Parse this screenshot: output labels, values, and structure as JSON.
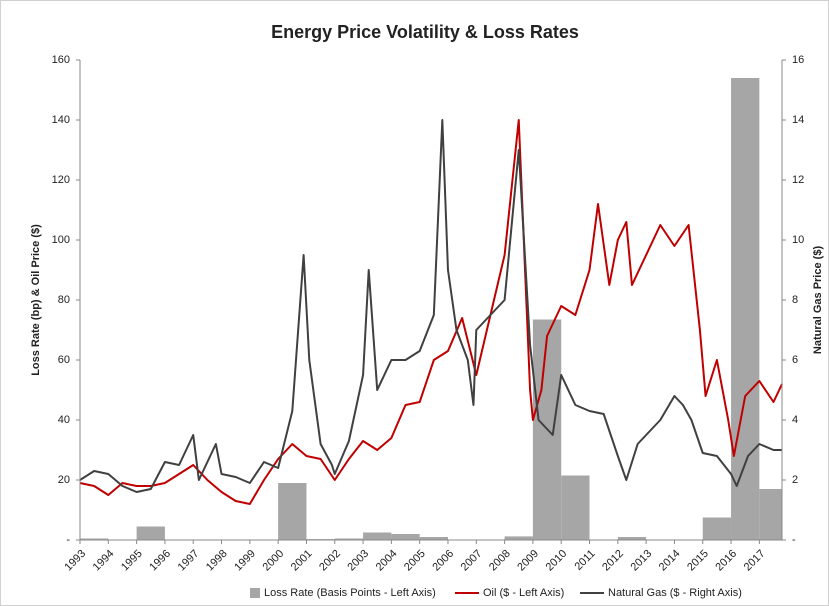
{
  "chart_data": {
    "type": "combo",
    "title": "Energy Price Volatility & Loss Rates",
    "ylabel": "Loss Rate (bp) & Oil Price ($)",
    "y2label": "Natural Gas Price ($)",
    "xlim": [
      1993,
      2017.8
    ],
    "xticks": [
      1993,
      1994,
      1995,
      1996,
      1997,
      1998,
      1999,
      2000,
      2001,
      2002,
      2003,
      2004,
      2005,
      2006,
      2007,
      2008,
      2009,
      2010,
      2011,
      2012,
      2013,
      2014,
      2015,
      2016,
      2017
    ],
    "ylim": [
      0,
      160
    ],
    "yticks": [
      {
        "value": 0,
        "label": "-"
      },
      20,
      40,
      60,
      80,
      100,
      120,
      140,
      160
    ],
    "y2lim": [
      0,
      16
    ],
    "y2ticks": [
      {
        "value": 0,
        "label": "-"
      },
      2,
      4,
      6,
      8,
      10,
      12,
      14,
      16
    ],
    "legend": "bottom",
    "series": [
      {
        "name": "Loss Rate (Basis Points - Left Axis)",
        "type": "bar",
        "color": "#a6a6a6",
        "x": [
          1993,
          1994,
          1995,
          1996,
          1997,
          1998,
          1999,
          2000,
          2001,
          2002,
          2003,
          2004,
          2005,
          2006,
          2007,
          2008,
          2009,
          2010,
          2011,
          2012,
          2013,
          2014,
          2015,
          2016,
          2017
        ],
        "values": [
          0.5,
          0,
          4.5,
          0,
          0,
          0,
          0,
          19,
          0.3,
          0.5,
          2.5,
          2,
          1,
          0,
          0,
          1.2,
          73.5,
          21.5,
          0,
          1,
          0,
          0,
          7.5,
          154,
          17
        ]
      },
      {
        "name": "Oil ($ - Left Axis)",
        "type": "line",
        "color": "#c00000",
        "x": [
          1993,
          1993.5,
          1994,
          1994.5,
          1995,
          1995.5,
          1996,
          1996.5,
          1997,
          1997.5,
          1998,
          1998.5,
          1999,
          1999.5,
          2000,
          2000.5,
          2001,
          2001.5,
          2002,
          2002.5,
          2003,
          2003.5,
          2004,
          2004.5,
          2005,
          2005.5,
          2006,
          2006.5,
          2007,
          2007.5,
          2008,
          2008.5,
          2008.9,
          2009,
          2009.3,
          2009.5,
          2010,
          2010.5,
          2011,
          2011.3,
          2011.7,
          2012,
          2012.3,
          2012.5,
          2013,
          2013.5,
          2014,
          2014.5,
          2014.9,
          2015.1,
          2015.5,
          2015.9,
          2016.1,
          2016.5,
          2017,
          2017.5,
          2017.8
        ],
        "values": [
          19,
          18,
          15,
          19,
          18,
          18,
          19,
          22,
          25,
          20,
          16,
          13,
          12,
          20,
          27,
          32,
          28,
          27,
          20,
          27,
          33,
          30,
          34,
          45,
          46,
          60,
          63,
          74,
          55,
          75,
          95,
          140,
          50,
          40,
          50,
          68,
          78,
          75,
          90,
          112,
          85,
          100,
          106,
          85,
          95,
          105,
          98,
          105,
          70,
          48,
          60,
          40,
          28,
          48,
          53,
          46,
          52
        ]
      },
      {
        "name": "Natural Gas ($ - Right Axis)",
        "type": "line",
        "axis": "y2",
        "color": "#404040",
        "x": [
          1993,
          1993.5,
          1994,
          1994.5,
          1995,
          1995.5,
          1996,
          1996.5,
          1997,
          1997.2,
          1997.8,
          1998,
          1998.5,
          1999,
          1999.5,
          2000,
          2000.5,
          2000.9,
          2001.1,
          2001.5,
          2001.9,
          2002,
          2002.5,
          2003,
          2003.2,
          2003.5,
          2004,
          2004.5,
          2005,
          2005.5,
          2005.8,
          2006,
          2006.3,
          2006.7,
          2006.9,
          2007,
          2007.5,
          2008,
          2008.5,
          2008.9,
          2009.2,
          2009.7,
          2010,
          2010.5,
          2011,
          2011.5,
          2012,
          2012.3,
          2012.7,
          2013,
          2013.5,
          2014,
          2014.3,
          2014.6,
          2015,
          2015.5,
          2016,
          2016.2,
          2016.6,
          2017,
          2017.5,
          2017.8
        ],
        "values": [
          2.0,
          2.3,
          2.2,
          1.8,
          1.6,
          1.7,
          2.6,
          2.5,
          3.5,
          2.0,
          3.2,
          2.2,
          2.1,
          1.9,
          2.6,
          2.4,
          4.3,
          9.5,
          6,
          3.2,
          2.5,
          2.2,
          3.3,
          5.5,
          9,
          5,
          6,
          6,
          6.3,
          7.5,
          14,
          9,
          7,
          6,
          4.5,
          7,
          7.5,
          8,
          13,
          6.5,
          4,
          3.5,
          5.5,
          4.5,
          4.3,
          4.2,
          2.8,
          2.0,
          3.2,
          3.5,
          4,
          4.8,
          4.5,
          4.0,
          2.9,
          2.8,
          2.2,
          1.8,
          2.8,
          3.2,
          3.0,
          3.0
        ]
      }
    ]
  }
}
